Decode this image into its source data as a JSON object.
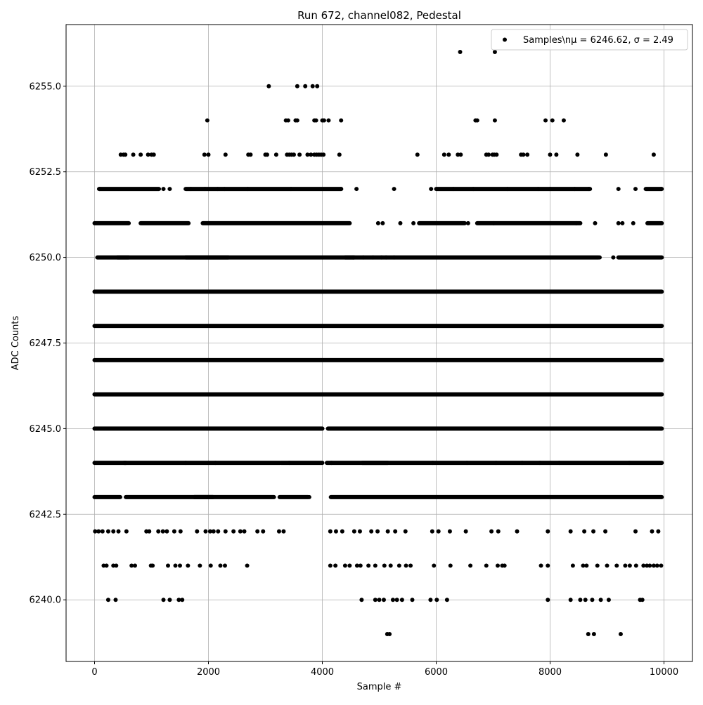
{
  "chart_data": {
    "type": "scatter",
    "title": "Run 672, channel082, Pedestal",
    "xlabel": "Sample #",
    "ylabel": "ADC Counts",
    "xlim": [
      -500,
      10500
    ],
    "ylim": [
      6238.2,
      6256.8
    ],
    "x_ticks": [
      0,
      2000,
      4000,
      6000,
      8000,
      10000
    ],
    "x_tick_labels": [
      "0",
      "2000",
      "4000",
      "6000",
      "8000",
      "10000"
    ],
    "y_ticks": [
      6240.0,
      6242.5,
      6245.0,
      6247.5,
      6250.0,
      6252.5,
      6255.0
    ],
    "y_tick_labels": [
      "6240.0",
      "6242.5",
      "6245.0",
      "6247.5",
      "6250.0",
      "6252.5",
      "6255.0"
    ],
    "grid": true,
    "legend_position": "top-right",
    "marker_color": "#000000",
    "series": [
      {
        "name": "Samples\\n$\\mu$ = 6246.62, $\\sigma$ = 2.49",
        "legend_label": "Samples\\nμ = 6246.62, σ = 2.49",
        "x": [
          6420,
          7030,
          3060,
          3560,
          3700,
          3830,
          3910,
          1980,
          3360,
          3400,
          3530,
          3560,
          3860,
          3890,
          4000,
          4030,
          4110,
          4330,
          6690,
          6720,
          7030,
          7920,
          8040,
          8240,
          460,
          510,
          540,
          680,
          810,
          940,
          1000,
          1040,
          1930,
          2000,
          2300,
          2700,
          2740,
          3000,
          3030,
          3190,
          3380,
          3420,
          3460,
          3500,
          3600,
          3740,
          3800,
          3860,
          3900,
          3940,
          3980,
          4020,
          4300,
          5670,
          6140,
          6220,
          6380,
          6430,
          6880,
          6920,
          6990,
          7020,
          7060,
          7490,
          7530,
          7600,
          8000,
          8110,
          8480,
          8980,
          9820,
          90,
          1210,
          1320,
          1690,
          1940,
          2160,
          2280,
          2690,
          3450,
          4330,
          4600,
          5260,
          5910,
          6300,
          6650,
          7250,
          7790,
          8000,
          8430,
          8680,
          9200,
          9500,
          9950,
          4980,
          5060,
          5370,
          5600,
          6560,
          7010,
          8460,
          8790,
          9200,
          9270,
          9460,
          4540,
          4720,
          4890,
          5040,
          5120,
          5260,
          8870,
          9110,
          1600,
          2120,
          3420,
          4160,
          5940,
          6540,
          7050,
          7510,
          7820,
          8160,
          9390,
          3770,
          10,
          70,
          140,
          240,
          330,
          420,
          560,
          910,
          960,
          1120,
          1200,
          1270,
          1400,
          1510,
          1800,
          1950,
          2030,
          2090,
          2170,
          2300,
          2440,
          2560,
          2630,
          2860,
          2960,
          3240,
          3320,
          4140,
          4240,
          4350,
          4560,
          4660,
          4860,
          4970,
          5150,
          5280,
          5460,
          5930,
          6040,
          6240,
          6520,
          6970,
          7090,
          7420,
          7960,
          8360,
          8600,
          8760,
          8970,
          9500,
          9790,
          9900,
          160,
          210,
          330,
          380,
          650,
          710,
          990,
          1020,
          1290,
          1420,
          1500,
          1640,
          1850,
          2040,
          2210,
          2290,
          2680,
          4140,
          4230,
          4400,
          4480,
          4610,
          4670,
          4810,
          4930,
          5090,
          5200,
          5350,
          5470,
          5550,
          5960,
          6250,
          6600,
          6880,
          7080,
          7160,
          7200,
          7840,
          7960,
          8400,
          8580,
          8640,
          8830,
          9000,
          9170,
          9320,
          9400,
          9510,
          9640,
          9700,
          9750,
          9820,
          9880,
          9950,
          240,
          370,
          1210,
          1320,
          1480,
          1540,
          4690,
          4930,
          5000,
          5080,
          5240,
          5310,
          5400,
          5580,
          5900,
          6010,
          6190,
          7960,
          8360,
          8530,
          8620,
          8740,
          8890,
          9030,
          9580,
          9620,
          5140,
          5180,
          8670,
          8770,
          9240
        ],
        "y": [
          6256,
          6256,
          6255,
          6255,
          6255,
          6255,
          6255,
          6254,
          6254,
          6254,
          6254,
          6254,
          6254,
          6254,
          6254,
          6254,
          6254,
          6254,
          6254,
          6254,
          6254,
          6254,
          6254,
          6254,
          6253,
          6253,
          6253,
          6253,
          6253,
          6253,
          6253,
          6253,
          6253,
          6253,
          6253,
          6253,
          6253,
          6253,
          6253,
          6253,
          6253,
          6253,
          6253,
          6253,
          6253,
          6253,
          6253,
          6253,
          6253,
          6253,
          6253,
          6253,
          6253,
          6253,
          6253,
          6253,
          6253,
          6253,
          6253,
          6253,
          6253,
          6253,
          6253,
          6253,
          6253,
          6253,
          6253,
          6253,
          6253,
          6253,
          6253,
          6252,
          6252,
          6252,
          6252,
          6252,
          6252,
          6252,
          6252,
          6252,
          6252,
          6252,
          6252,
          6252,
          6252,
          6252,
          6252,
          6252,
          6252,
          6252,
          6252,
          6252,
          6252,
          6252,
          6251,
          6251,
          6251,
          6251,
          6251,
          6251,
          6251,
          6251,
          6251,
          6251,
          6251,
          6250,
          6250,
          6250,
          6250,
          6250,
          6250,
          6250,
          6250,
          6244,
          6244,
          6244,
          6244,
          6244,
          6244,
          6244,
          6244,
          6244,
          6244,
          6244,
          6243,
          6242,
          6242,
          6242,
          6242,
          6242,
          6242,
          6242,
          6242,
          6242,
          6242,
          6242,
          6242,
          6242,
          6242,
          6242,
          6242,
          6242,
          6242,
          6242,
          6242,
          6242,
          6242,
          6242,
          6242,
          6242,
          6242,
          6242,
          6242,
          6242,
          6242,
          6242,
          6242,
          6242,
          6242,
          6242,
          6242,
          6242,
          6242,
          6242,
          6242,
          6242,
          6242,
          6242,
          6242,
          6242,
          6242,
          6242,
          6242,
          6242,
          6242,
          6242,
          6242,
          6241,
          6241,
          6241,
          6241,
          6241,
          6241,
          6241,
          6241,
          6241,
          6241,
          6241,
          6241,
          6241,
          6241,
          6241,
          6241,
          6241,
          6241,
          6241,
          6241,
          6241,
          6241,
          6241,
          6241,
          6241,
          6241,
          6241,
          6241,
          6241,
          6241,
          6241,
          6241,
          6241,
          6241,
          6241,
          6241,
          6241,
          6241,
          6241,
          6241,
          6241,
          6241,
          6241,
          6241,
          6241,
          6241,
          6241,
          6241,
          6241,
          6241,
          6241,
          6241,
          6241,
          6241,
          6240,
          6240,
          6240,
          6240,
          6240,
          6240,
          6240,
          6240,
          6240,
          6240,
          6240,
          6240,
          6240,
          6240,
          6240,
          6240,
          6240,
          6240,
          6240,
          6240,
          6240,
          6240,
          6240,
          6240,
          6240,
          6240,
          6239,
          6239,
          6239,
          6239,
          6239
        ],
        "dense_levels": [
          {
            "y": 6252,
            "segments": [
              [
                80,
                1130
              ],
              [
                1600,
                4330
              ],
              [
                6000,
                8700
              ],
              [
                9680,
                9960
              ]
            ]
          },
          {
            "y": 6251,
            "segments": [
              [
                0,
                600
              ],
              [
                810,
                1650
              ],
              [
                1900,
                4480
              ],
              [
                5700,
                6500
              ],
              [
                6720,
                8530
              ],
              [
                9710,
                9960
              ]
            ]
          },
          {
            "y": 6250,
            "segments": [
              [
                50,
                600
              ],
              [
                400,
                2350
              ],
              [
                1600,
                4560
              ],
              [
                4400,
                8850
              ],
              [
                9200,
                9960
              ]
            ]
          },
          {
            "y": 6249,
            "segments": [
              [
                0,
                9960
              ]
            ]
          },
          {
            "y": 6248,
            "segments": [
              [
                0,
                9960
              ]
            ]
          },
          {
            "y": 6247,
            "segments": [
              [
                0,
                9960
              ]
            ]
          },
          {
            "y": 6246,
            "segments": [
              [
                0,
                9960
              ]
            ]
          },
          {
            "y": 6245,
            "segments": [
              [
                0,
                4000
              ],
              [
                4100,
                9960
              ]
            ]
          },
          {
            "y": 6244,
            "segments": [
              [
                0,
                550
              ],
              [
                520,
                3260
              ],
              [
                3280,
                4000
              ],
              [
                4080,
                5150
              ],
              [
                4700,
                9960
              ]
            ]
          },
          {
            "y": 6243,
            "segments": [
              [
                0,
                450
              ],
              [
                550,
                2080
              ],
              [
                1750,
                3150
              ],
              [
                3250,
                3750
              ],
              [
                4150,
                9960
              ]
            ]
          }
        ]
      }
    ]
  }
}
